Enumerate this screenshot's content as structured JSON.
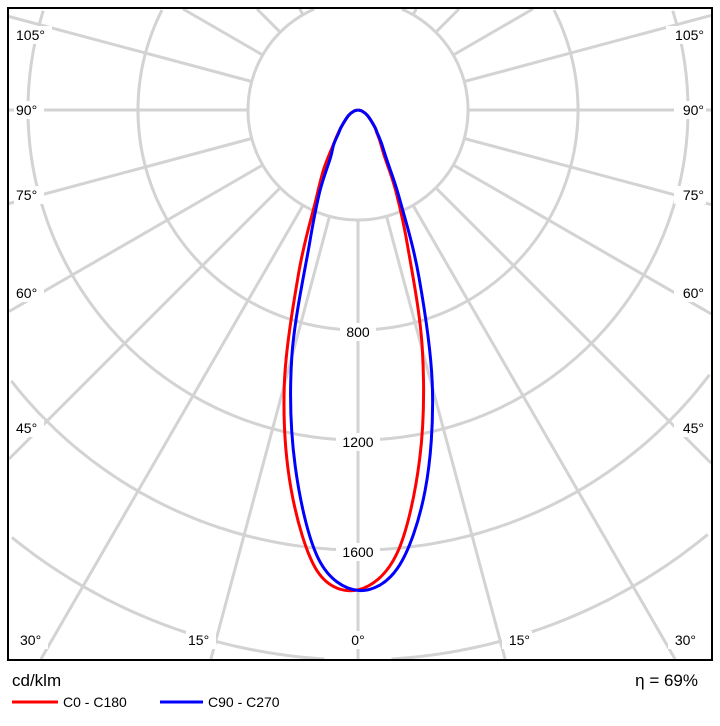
{
  "chart_data": {
    "type": "polar",
    "unit_label": "cd/klm",
    "efficiency_label": "η = 69%",
    "radial_ticks": [
      400,
      800,
      1200,
      1600,
      2000
    ],
    "radial_tick_labels": [
      "800",
      "1200",
      "1600"
    ],
    "rlim": [
      0,
      2000
    ],
    "angle_grid_step_deg": 15,
    "angle_labels_left": [
      "105°",
      "90°",
      "75°",
      "60°",
      "45°",
      "30°",
      "15°"
    ],
    "angle_labels_right": [
      "105°",
      "90°",
      "75°",
      "60°",
      "45°",
      "30°",
      "15°"
    ],
    "angle_label_zero": "0°",
    "grid": true,
    "legend_position": "bottom-left",
    "series": [
      {
        "name": "C0 - C180",
        "color": "#ff0000",
        "angles_deg": [
          -90,
          -75,
          -60,
          -45,
          -40,
          -35,
          -30,
          -25,
          -20,
          -15,
          -10,
          -5,
          0,
          5,
          10,
          15,
          20,
          25,
          30,
          35,
          40,
          45,
          60,
          75,
          90
        ],
        "values": [
          0,
          15,
          40,
          85,
          115,
          160,
          250,
          365,
          630,
          1035,
          1400,
          1685,
          1745,
          1620,
          1290,
          905,
          530,
          325,
          190,
          140,
          105,
          85,
          40,
          15,
          0
        ]
      },
      {
        "name": "C90 - C270",
        "color": "#0000ff",
        "angles_deg": [
          -90,
          -75,
          -60,
          -45,
          -40,
          -35,
          -30,
          -25,
          -20,
          -15,
          -10,
          -5,
          0,
          5,
          10,
          15,
          20,
          25,
          30,
          35,
          40,
          45,
          60,
          75,
          90
        ],
        "values": [
          0,
          15,
          40,
          85,
          110,
          155,
          200,
          330,
          515,
          930,
          1315,
          1640,
          1747,
          1670,
          1405,
          1045,
          650,
          360,
          210,
          150,
          110,
          85,
          40,
          15,
          0
        ]
      }
    ]
  }
}
